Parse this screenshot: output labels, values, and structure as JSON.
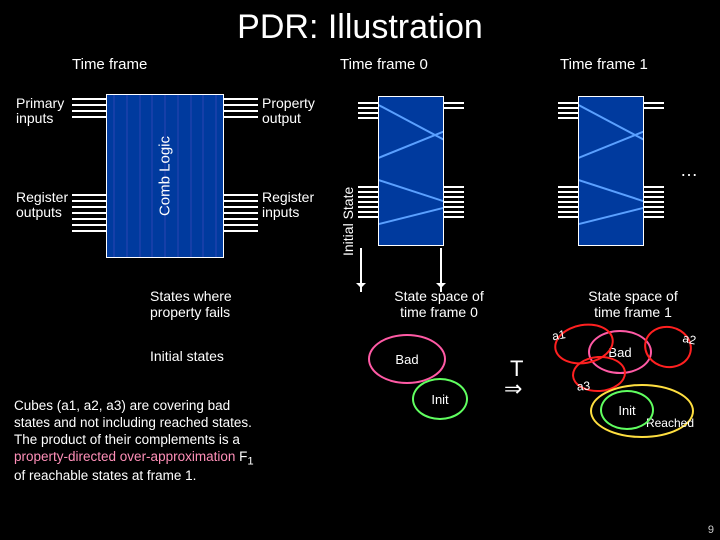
{
  "title": "PDR: Illustration",
  "headers": {
    "tf": "Time frame",
    "tf0": "Time frame 0",
    "tf1": "Time frame 1"
  },
  "circuit": {
    "primary_inputs": "Primary\ninputs",
    "register_outputs": "Register\noutputs",
    "comb_logic": "Comb Logic",
    "property_output": "Property\noutput",
    "register_inputs": "Register\ninputs",
    "initial_state": "Initial State",
    "color": "#003a9e"
  },
  "ellipsis": "…",
  "states_where": "States where\nproperty fails",
  "initial_states": "Initial states",
  "state_space_0": "State space of\ntime frame 0",
  "state_space_1": "State space of\ntime frame 1",
  "venn0": {
    "bad": "Bad",
    "init": "Init",
    "bad_color": "#ff5aa5",
    "init_color": "#60ff60"
  },
  "venn1": {
    "bad": "Bad",
    "init": "Init",
    "reached": "Reached",
    "a1": "a1",
    "a2": "a2",
    "a3": "a3",
    "bad_color": "#ff5aa5",
    "init_color": "#60ff60",
    "reached_color": "#ffdf40",
    "cube_color": "#ff2020"
  },
  "transition": {
    "T": "T",
    "arrow": "⇒"
  },
  "footnote": {
    "l1": "Cubes (a1, a2, a3) are covering bad",
    "l2": "states and not including reached states.",
    "l3": "The product of their complements is a",
    "l4a": "property-directed over-approximation",
    "l4b": " F",
    "l4c": "1",
    "l5": "of reachable states at frame 1."
  },
  "slide_number": "9"
}
